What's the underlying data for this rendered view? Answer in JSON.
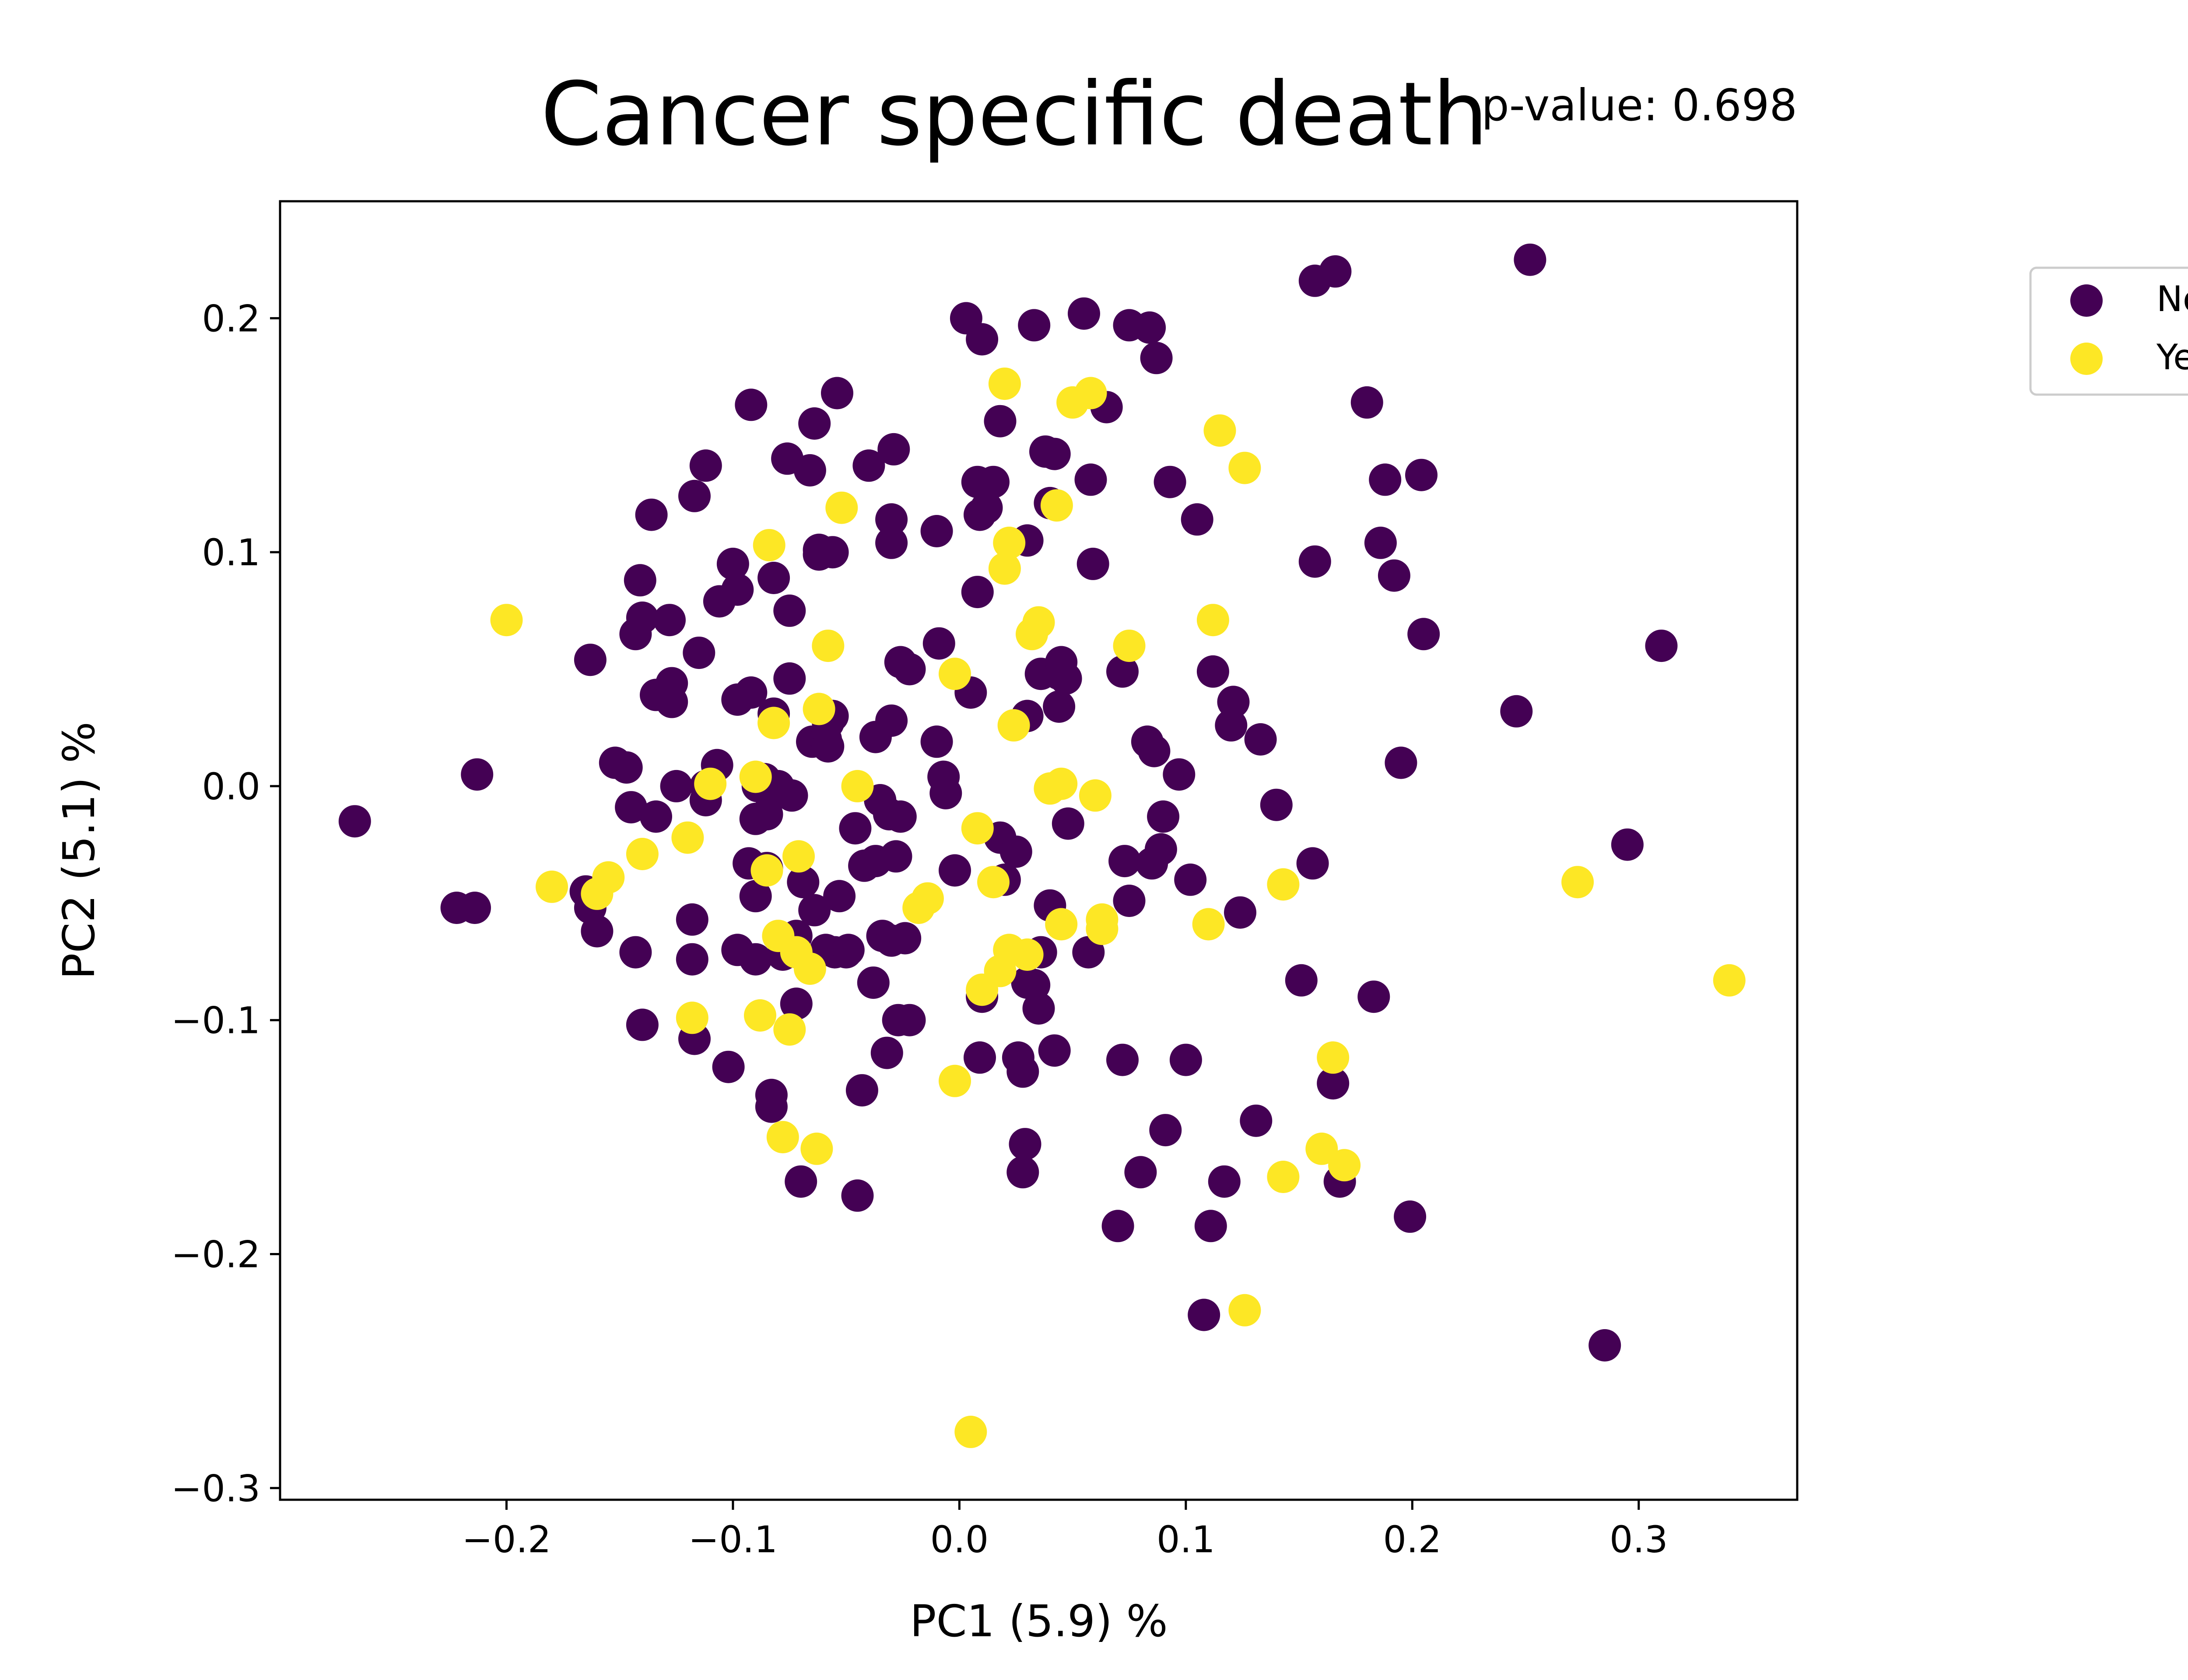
{
  "chart_data": {
    "type": "scatter",
    "title": "Cancer specific death",
    "annotation": "p-value: 0.698",
    "xlabel": "PC1 (5.9) %",
    "ylabel": "PC2 (5.1) %",
    "xlim": [
      -0.3,
      0.37
    ],
    "ylim": [
      -0.305,
      0.25
    ],
    "xticks": [
      -0.2,
      -0.1,
      0.0,
      0.1,
      0.2,
      0.3
    ],
    "yticks": [
      -0.3,
      -0.2,
      -0.1,
      0.0,
      0.1,
      0.2
    ],
    "xtick_labels": [
      "−0.2",
      "−0.1",
      "0.0",
      "0.1",
      "0.2",
      "0.3"
    ],
    "ytick_labels": [
      "−0.3",
      "−0.2",
      "−0.1",
      "0.0",
      "0.1",
      "0.2"
    ],
    "grid": false,
    "legend": {
      "position": "outside-top-right",
      "entries": [
        "No",
        "Yes"
      ]
    },
    "series": [
      {
        "name": "No",
        "color": "#440154",
        "points": [
          [
            -0.267,
            -0.015
          ],
          [
            -0.222,
            -0.052
          ],
          [
            -0.214,
            -0.052
          ],
          [
            -0.213,
            0.005
          ],
          [
            -0.165,
            -0.045
          ],
          [
            -0.163,
            -0.052
          ],
          [
            -0.16,
            -0.062
          ],
          [
            -0.163,
            0.054
          ],
          [
            -0.152,
            0.01
          ],
          [
            -0.147,
            0.008
          ],
          [
            -0.145,
            -0.009
          ],
          [
            -0.143,
            -0.071
          ],
          [
            -0.14,
            -0.102
          ],
          [
            -0.141,
            0.088
          ],
          [
            -0.143,
            0.065
          ],
          [
            -0.14,
            0.072
          ],
          [
            -0.136,
            0.116
          ],
          [
            -0.134,
            -0.013
          ],
          [
            -0.134,
            0.039
          ],
          [
            -0.128,
            0.071
          ],
          [
            -0.127,
            0.044
          ],
          [
            -0.127,
            0.036
          ],
          [
            -0.125,
            0.0
          ],
          [
            -0.118,
            -0.057
          ],
          [
            -0.118,
            -0.074
          ],
          [
            -0.117,
            -0.108
          ],
          [
            -0.117,
            0.124
          ],
          [
            -0.115,
            0.057
          ],
          [
            -0.112,
            0.137
          ],
          [
            -0.112,
            0.0
          ],
          [
            -0.112,
            -0.006
          ],
          [
            -0.107,
            0.009
          ],
          [
            -0.106,
            0.079
          ],
          [
            -0.102,
            -0.12
          ],
          [
            -0.1,
            0.095
          ],
          [
            -0.098,
            0.037
          ],
          [
            -0.098,
            0.084
          ],
          [
            -0.098,
            -0.07
          ],
          [
            -0.093,
            -0.033
          ],
          [
            -0.092,
            0.04
          ],
          [
            -0.092,
            0.163
          ],
          [
            -0.09,
            -0.074
          ],
          [
            -0.09,
            -0.047
          ],
          [
            -0.09,
            -0.014
          ],
          [
            -0.089,
            0.0
          ],
          [
            -0.086,
            0.003
          ],
          [
            -0.085,
            -0.012
          ],
          [
            -0.085,
            -0.035
          ],
          [
            -0.083,
            -0.132
          ],
          [
            -0.083,
            -0.137
          ],
          [
            -0.082,
            0.031
          ],
          [
            -0.082,
            0.089
          ],
          [
            -0.08,
            0.0
          ],
          [
            -0.078,
            -0.072
          ],
          [
            -0.076,
            0.14
          ],
          [
            -0.075,
            0.075
          ],
          [
            -0.075,
            0.046
          ],
          [
            -0.074,
            -0.004
          ],
          [
            -0.072,
            -0.064
          ],
          [
            -0.072,
            -0.093
          ],
          [
            -0.07,
            -0.169
          ],
          [
            -0.069,
            -0.041
          ],
          [
            -0.066,
            0.135
          ],
          [
            -0.065,
            0.019
          ],
          [
            -0.064,
            -0.053
          ],
          [
            -0.064,
            0.155
          ],
          [
            -0.062,
            0.101
          ],
          [
            -0.062,
            0.099
          ],
          [
            -0.059,
            0.02
          ],
          [
            -0.059,
            -0.07
          ],
          [
            -0.058,
            0.017
          ],
          [
            -0.058,
            0.027
          ],
          [
            -0.056,
            0.1
          ],
          [
            -0.056,
            0.03
          ],
          [
            -0.055,
            -0.071
          ],
          [
            -0.054,
            0.168
          ],
          [
            -0.053,
            -0.047
          ],
          [
            -0.05,
            -0.071
          ],
          [
            -0.049,
            -0.07
          ],
          [
            -0.046,
            -0.018
          ],
          [
            -0.045,
            -0.175
          ],
          [
            -0.043,
            -0.13
          ],
          [
            -0.042,
            -0.034
          ],
          [
            -0.04,
            0.137
          ],
          [
            -0.038,
            -0.084
          ],
          [
            -0.037,
            -0.032
          ],
          [
            -0.037,
            0.021
          ],
          [
            -0.035,
            -0.006
          ],
          [
            -0.034,
            -0.064
          ],
          [
            -0.032,
            -0.114
          ],
          [
            -0.031,
            -0.012
          ],
          [
            -0.03,
            -0.066
          ],
          [
            -0.03,
            0.028
          ],
          [
            -0.03,
            0.114
          ],
          [
            -0.03,
            0.104
          ],
          [
            -0.029,
            0.144
          ],
          [
            -0.028,
            -0.03
          ],
          [
            -0.027,
            -0.1
          ],
          [
            -0.026,
            -0.013
          ],
          [
            -0.026,
            0.053
          ],
          [
            -0.024,
            -0.065
          ],
          [
            -0.022,
            0.05
          ],
          [
            -0.022,
            -0.1
          ],
          [
            -0.01,
            0.019
          ],
          [
            -0.01,
            0.109
          ],
          [
            -0.009,
            0.061
          ],
          [
            -0.007,
            0.004
          ],
          [
            -0.006,
            -0.003
          ],
          [
            -0.002,
            -0.036
          ],
          [
            0.003,
            0.2
          ],
          [
            0.005,
            0.04
          ],
          [
            0.008,
            0.083
          ],
          [
            0.008,
            0.13
          ],
          [
            0.009,
            -0.116
          ],
          [
            0.009,
            0.116
          ],
          [
            0.01,
            -0.09
          ],
          [
            0.01,
            0.191
          ],
          [
            0.012,
            0.119
          ],
          [
            0.015,
            0.13
          ],
          [
            0.018,
            0.156
          ],
          [
            0.018,
            -0.022
          ],
          [
            0.02,
            -0.04
          ],
          [
            0.025,
            -0.028
          ],
          [
            0.026,
            -0.116
          ],
          [
            0.028,
            -0.122
          ],
          [
            0.028,
            -0.165
          ],
          [
            0.029,
            -0.153
          ],
          [
            0.03,
            -0.084
          ],
          [
            0.03,
            0.03
          ],
          [
            0.03,
            0.105
          ],
          [
            0.033,
            0.197
          ],
          [
            0.033,
            -0.085
          ],
          [
            0.035,
            -0.095
          ],
          [
            0.036,
            -0.071
          ],
          [
            0.036,
            0.048
          ],
          [
            0.038,
            0.143
          ],
          [
            0.04,
            -0.051
          ],
          [
            0.04,
            0.121
          ],
          [
            0.042,
            0.142
          ],
          [
            0.042,
            -0.113
          ],
          [
            0.044,
            0.048
          ],
          [
            0.044,
            0.034
          ],
          [
            0.045,
            0.053
          ],
          [
            0.047,
            0.046
          ],
          [
            0.048,
            -0.016
          ],
          [
            0.055,
            0.202
          ],
          [
            0.057,
            -0.071
          ],
          [
            0.058,
            0.131
          ],
          [
            0.059,
            0.095
          ],
          [
            0.065,
            0.162
          ],
          [
            0.07,
            -0.188
          ],
          [
            0.072,
            -0.117
          ],
          [
            0.072,
            0.049
          ],
          [
            0.073,
            -0.032
          ],
          [
            0.075,
            -0.049
          ],
          [
            0.075,
            0.197
          ],
          [
            0.08,
            -0.165
          ],
          [
            0.083,
            0.019
          ],
          [
            0.084,
            0.196
          ],
          [
            0.085,
            -0.033
          ],
          [
            0.086,
            0.015
          ],
          [
            0.087,
            0.183
          ],
          [
            0.089,
            -0.027
          ],
          [
            0.09,
            -0.013
          ],
          [
            0.091,
            -0.147
          ],
          [
            0.093,
            0.13
          ],
          [
            0.097,
            0.005
          ],
          [
            0.1,
            -0.117
          ],
          [
            0.102,
            -0.04
          ],
          [
            0.105,
            0.114
          ],
          [
            0.108,
            -0.226
          ],
          [
            0.111,
            -0.188
          ],
          [
            0.112,
            0.049
          ],
          [
            0.117,
            -0.169
          ],
          [
            0.12,
            0.026
          ],
          [
            0.121,
            0.036
          ],
          [
            0.124,
            -0.054
          ],
          [
            0.131,
            -0.143
          ],
          [
            0.133,
            0.02
          ],
          [
            0.14,
            -0.008
          ],
          [
            0.151,
            -0.083
          ],
          [
            0.156,
            -0.033
          ],
          [
            0.157,
            0.096
          ],
          [
            0.157,
            0.216
          ],
          [
            0.165,
            -0.127
          ],
          [
            0.166,
            0.22
          ],
          [
            0.168,
            -0.169
          ],
          [
            0.18,
            0.164
          ],
          [
            0.183,
            -0.09
          ],
          [
            0.186,
            0.104
          ],
          [
            0.188,
            0.131
          ],
          [
            0.192,
            0.09
          ],
          [
            0.195,
            0.01
          ],
          [
            0.199,
            -0.184
          ],
          [
            0.204,
            0.133
          ],
          [
            0.205,
            0.065
          ],
          [
            0.246,
            0.032
          ],
          [
            0.252,
            0.225
          ],
          [
            0.285,
            -0.239
          ],
          [
            0.295,
            -0.025
          ],
          [
            0.31,
            0.06
          ]
        ]
      },
      {
        "name": "Yes",
        "color": "#fde725",
        "points": [
          [
            -0.2,
            0.071
          ],
          [
            -0.18,
            -0.043
          ],
          [
            -0.16,
            -0.046
          ],
          [
            -0.155,
            -0.039
          ],
          [
            -0.14,
            -0.029
          ],
          [
            -0.12,
            -0.022
          ],
          [
            -0.118,
            -0.099
          ],
          [
            -0.11,
            0.001
          ],
          [
            -0.09,
            0.004
          ],
          [
            -0.088,
            -0.098
          ],
          [
            -0.085,
            -0.036
          ],
          [
            -0.084,
            0.103
          ],
          [
            -0.082,
            0.027
          ],
          [
            -0.08,
            -0.064
          ],
          [
            -0.078,
            -0.15
          ],
          [
            -0.075,
            -0.104
          ],
          [
            -0.072,
            -0.071
          ],
          [
            -0.071,
            -0.03
          ],
          [
            -0.066,
            -0.078
          ],
          [
            -0.063,
            -0.155
          ],
          [
            -0.062,
            0.033
          ],
          [
            -0.058,
            0.06
          ],
          [
            -0.052,
            0.119
          ],
          [
            -0.045,
            0.0
          ],
          [
            -0.018,
            -0.052
          ],
          [
            -0.014,
            -0.048
          ],
          [
            -0.002,
            0.048
          ],
          [
            -0.002,
            -0.126
          ],
          [
            0.005,
            -0.276
          ],
          [
            0.008,
            -0.018
          ],
          [
            0.01,
            -0.087
          ],
          [
            0.015,
            -0.041
          ],
          [
            0.018,
            -0.079
          ],
          [
            0.02,
            0.172
          ],
          [
            0.02,
            0.093
          ],
          [
            0.022,
            -0.07
          ],
          [
            0.022,
            0.104
          ],
          [
            0.024,
            0.026
          ],
          [
            0.03,
            -0.072
          ],
          [
            0.032,
            0.065
          ],
          [
            0.035,
            0.07
          ],
          [
            0.04,
            -0.001
          ],
          [
            0.043,
            0.12
          ],
          [
            0.045,
            -0.059
          ],
          [
            0.045,
            0.001
          ],
          [
            0.05,
            0.164
          ],
          [
            0.058,
            0.168
          ],
          [
            0.06,
            -0.004
          ],
          [
            0.063,
            -0.057
          ],
          [
            0.063,
            -0.061
          ],
          [
            0.075,
            0.06
          ],
          [
            0.11,
            -0.059
          ],
          [
            0.112,
            0.071
          ],
          [
            0.115,
            0.152
          ],
          [
            0.126,
            -0.224
          ],
          [
            0.126,
            0.136
          ],
          [
            0.143,
            -0.042
          ],
          [
            0.143,
            -0.167
          ],
          [
            0.16,
            -0.155
          ],
          [
            0.165,
            -0.116
          ],
          [
            0.17,
            -0.162
          ],
          [
            0.273,
            -0.041
          ],
          [
            0.34,
            -0.083
          ]
        ]
      }
    ]
  }
}
